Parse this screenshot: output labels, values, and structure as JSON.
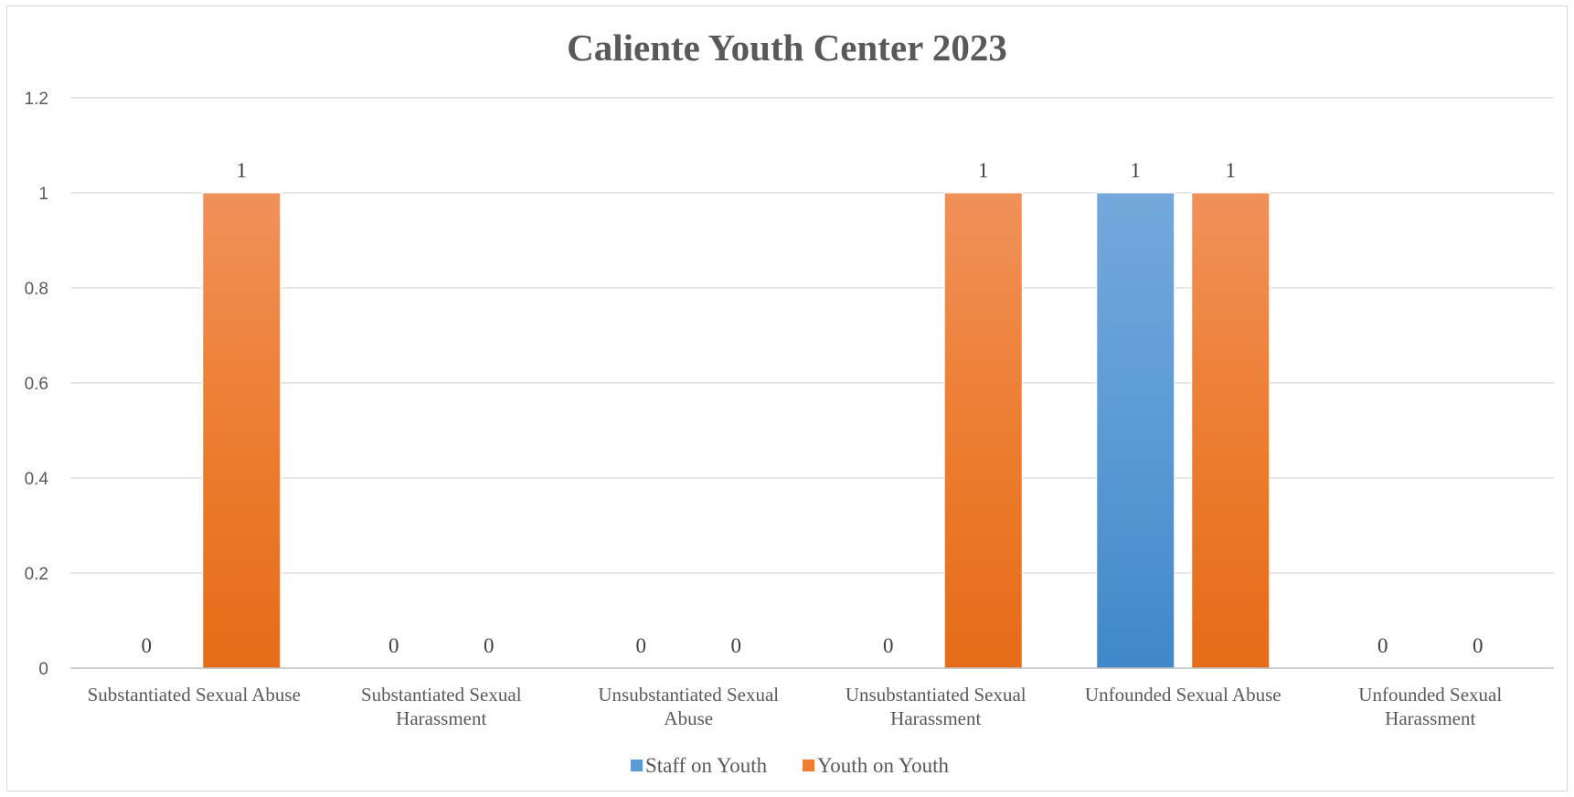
{
  "chart_data": {
    "type": "bar",
    "title": "Caliente Youth Center 2023",
    "xlabel": "",
    "ylabel": "",
    "categories": [
      [
        "Substantiated Sexual Abuse"
      ],
      [
        "Substantiated Sexual",
        "Harassment"
      ],
      [
        "Unsubstantiated Sexual",
        "Abuse"
      ],
      [
        "Unsubstantiated Sexual",
        "Harassment"
      ],
      [
        "Unfounded Sexual Abuse"
      ],
      [
        "Unfounded Sexual",
        "Harassment"
      ]
    ],
    "series": [
      {
        "name": "Staff on Youth",
        "color": "#5b9bd5",
        "color_top": "#74a8dc",
        "color_bottom": "#4088c9",
        "values": [
          0,
          0,
          0,
          0,
          1,
          0
        ]
      },
      {
        "name": "Youth on Youth",
        "color": "#ed7d31",
        "color_top": "#f0915a",
        "color_bottom": "#e56c17",
        "values": [
          1,
          0,
          0,
          1,
          1,
          0
        ]
      }
    ],
    "ylim": [
      0,
      1.2
    ],
    "yticks": [
      "0",
      "0.2",
      "0.4",
      "0.6",
      "0.8",
      "1",
      "1.2"
    ],
    "grid": true,
    "gridline_color": "#d9d9d9",
    "legend": "bottom",
    "data_labels": true
  }
}
